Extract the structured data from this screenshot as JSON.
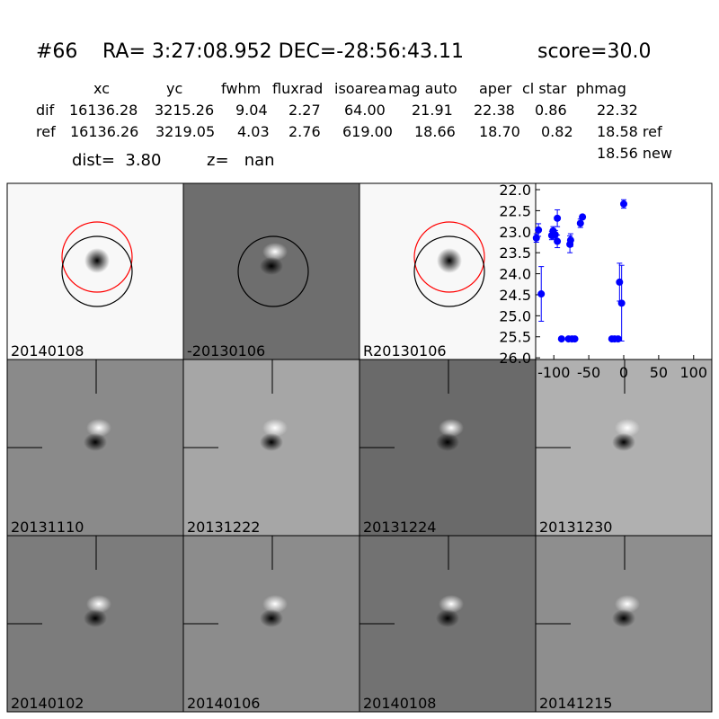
{
  "header": {
    "id": "#66",
    "coords": "RA= 3:27:08.952 DEC=-28:56:43.11",
    "score": "score=30.0"
  },
  "table": {
    "columns": [
      "xc",
      "yc",
      "fwhm",
      "fluxrad",
      "isoarea",
      "mag auto",
      "aper",
      "cl star",
      "phmag"
    ],
    "rows": [
      [
        "dif",
        "16136.28",
        "3215.26",
        "9.04",
        "2.27",
        "64.00",
        "21.91",
        "22.38",
        "0.86",
        "22.32"
      ],
      [
        "ref",
        "16136.26",
        "3219.05",
        "4.03",
        "2.76",
        "619.00",
        "18.66",
        "18.70",
        "0.82",
        "18.58 ref"
      ]
    ],
    "extra": "18.56 new"
  },
  "dist": "dist=  3.80",
  "z": "z=   nan",
  "panels": [
    {
      "label": "20140108",
      "color": "black"
    },
    {
      "label": "-20130106",
      "color": "black"
    },
    {
      "label": "R20130106",
      "color": "black"
    },
    {
      "label": "20131110",
      "color": "black"
    },
    {
      "label": "20131222",
      "color": "black"
    },
    {
      "label": "20131224",
      "color": "black"
    },
    {
      "label": "20131230",
      "color": "black"
    },
    {
      "label": "20140102",
      "color": "black"
    },
    {
      "label": "20140106",
      "color": "black"
    },
    {
      "label": "20140108",
      "color": "#e31a1c"
    },
    {
      "label": "20141215",
      "color": "black"
    }
  ],
  "chart_data": {
    "type": "errorbar",
    "x": [
      -125,
      -122,
      -118,
      -103,
      -101,
      -95,
      -95,
      -98,
      -89,
      -77,
      -76,
      -79,
      -74,
      -70,
      -62,
      -59,
      -17,
      -13,
      -8,
      -6,
      -3,
      0
    ],
    "series": [
      {
        "color": "#0000ff",
        "values": [
          23.15,
          22.96,
          24.48,
          23.09,
          22.98,
          22.68,
          23.23,
          23.07,
          25.55,
          23.3,
          23.2,
          25.55,
          25.55,
          25.55,
          22.8,
          22.65,
          25.55,
          25.55,
          25.55,
          24.2,
          24.7,
          22.34
        ],
        "errors": [
          0.1,
          0.15,
          0.65,
          0.1,
          0.1,
          0.2,
          0.15,
          0.1,
          0.03,
          0.2,
          0.15,
          0.03,
          0.03,
          0.03,
          0.1,
          0.05,
          0.03,
          0.03,
          0.03,
          0.45,
          0.9,
          0.1
        ]
      }
    ],
    "xlim": [
      -126,
      126
    ],
    "ylim": [
      26.04,
      21.85
    ],
    "xticks": [
      -100,
      -50,
      0,
      50,
      100
    ],
    "yticks": [
      {
        "value": 22,
        "label": "22.0"
      },
      22.5,
      {
        "value": 23,
        "label": "23.0"
      },
      23.5,
      {
        "value": 24,
        "label": "24.0"
      },
      24.5,
      {
        "value": 25,
        "label": "25.0"
      },
      25.5,
      {
        "value": 26,
        "label": "26.0"
      }
    ]
  }
}
